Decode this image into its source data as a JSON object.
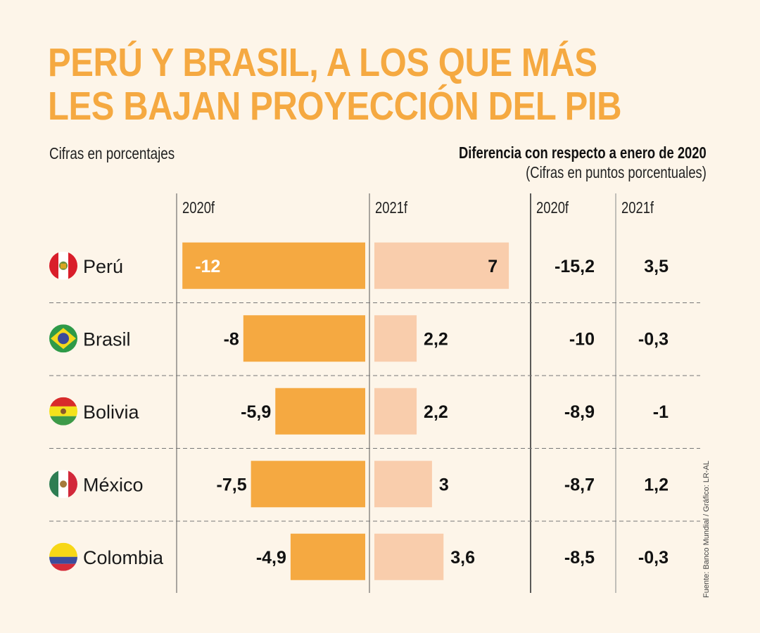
{
  "header": {
    "title_line1": "PERÚ Y BRASIL, A LOS QUE MÁS",
    "title_line2": "LES BAJAN PROYECCIÓN DEL PIB",
    "subtitle_left": "Cifras en porcentajes",
    "subtitle_right": "Diferencia con respecto a enero de 2020",
    "subtitle_right_note": "(Cifras en puntos porcentuales)"
  },
  "columns": {
    "proj_2020": "2020f",
    "proj_2021": "2021f",
    "diff_2020": "2020f",
    "diff_2021": "2021f"
  },
  "source": "Fuente: Banco Mundial / Gráfico: LR-AL",
  "colors": {
    "background": "#fdf5e9",
    "accent_title": "#f5a941",
    "bar_2020": "#f5a941",
    "bar_2021": "#f9cdac",
    "text": "#111111"
  },
  "chart_data": {
    "type": "table",
    "title": "PERÚ Y BRASIL, A LOS QUE MÁS LES BAJAN PROYECCIÓN DEL PIB",
    "unit_bars": "Cifras en porcentajes",
    "unit_diff": "Diferencia con respecto a enero de 2020 (Cifras en puntos porcentuales)",
    "categories": [
      "Perú",
      "Brasil",
      "Bolivia",
      "México",
      "Colombia"
    ],
    "flags": [
      "peru-flag-icon",
      "brazil-flag-icon",
      "bolivia-flag-icon",
      "mexico-flag-icon",
      "colombia-flag-icon"
    ],
    "series": [
      {
        "name": "2020f",
        "kind": "bar",
        "values": [
          -12,
          -8,
          -5.9,
          -7.5,
          -4.9
        ],
        "labels": [
          "-12",
          "-8",
          "-5,9",
          "-7,5",
          "-4,9"
        ]
      },
      {
        "name": "2021f",
        "kind": "bar",
        "values": [
          7,
          2.2,
          2.2,
          3,
          3.6
        ],
        "labels": [
          "7",
          "2,2",
          "2,2",
          "3",
          "3,6"
        ]
      },
      {
        "name": "Diferencia 2020f",
        "kind": "text",
        "values": [
          -15.2,
          -10,
          -8.9,
          -8.7,
          -8.5
        ],
        "labels": [
          "-15,2",
          "-10",
          "-8,9",
          "-8,7",
          "-8,5"
        ]
      },
      {
        "name": "Diferencia 2021f",
        "kind": "text",
        "values": [
          3.5,
          -0.3,
          -1,
          1.2,
          -0.3
        ],
        "labels": [
          "3,5",
          "-0,3",
          "-1",
          "1,2",
          "-0,3"
        ]
      }
    ]
  }
}
